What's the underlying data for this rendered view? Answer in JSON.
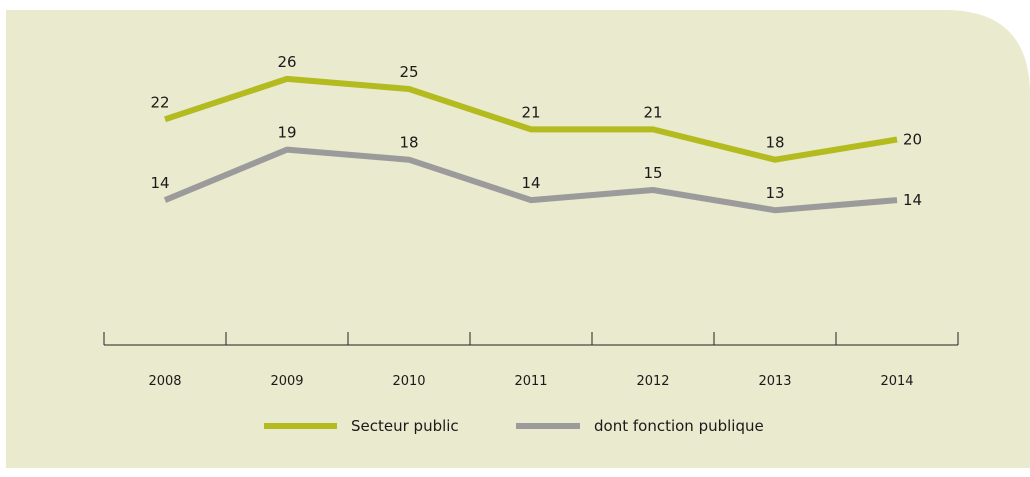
{
  "chart_data": {
    "type": "line",
    "categories": [
      "2008",
      "2009",
      "2010",
      "2011",
      "2012",
      "2013",
      "2014"
    ],
    "series": [
      {
        "name": "Secteur public",
        "values": [
          22,
          26,
          25,
          21,
          21,
          18,
          20
        ],
        "color": "#b3bb1f"
      },
      {
        "name": "dont fonction publique",
        "values": [
          14,
          19,
          18,
          14,
          15,
          13,
          14
        ],
        "color": "#9b9b9b"
      }
    ],
    "title": "",
    "xlabel": "",
    "ylabel": "",
    "ylim": [
      0,
      30
    ],
    "grid": false,
    "legend": "bottom-center",
    "background_color": "#eaeacf"
  }
}
